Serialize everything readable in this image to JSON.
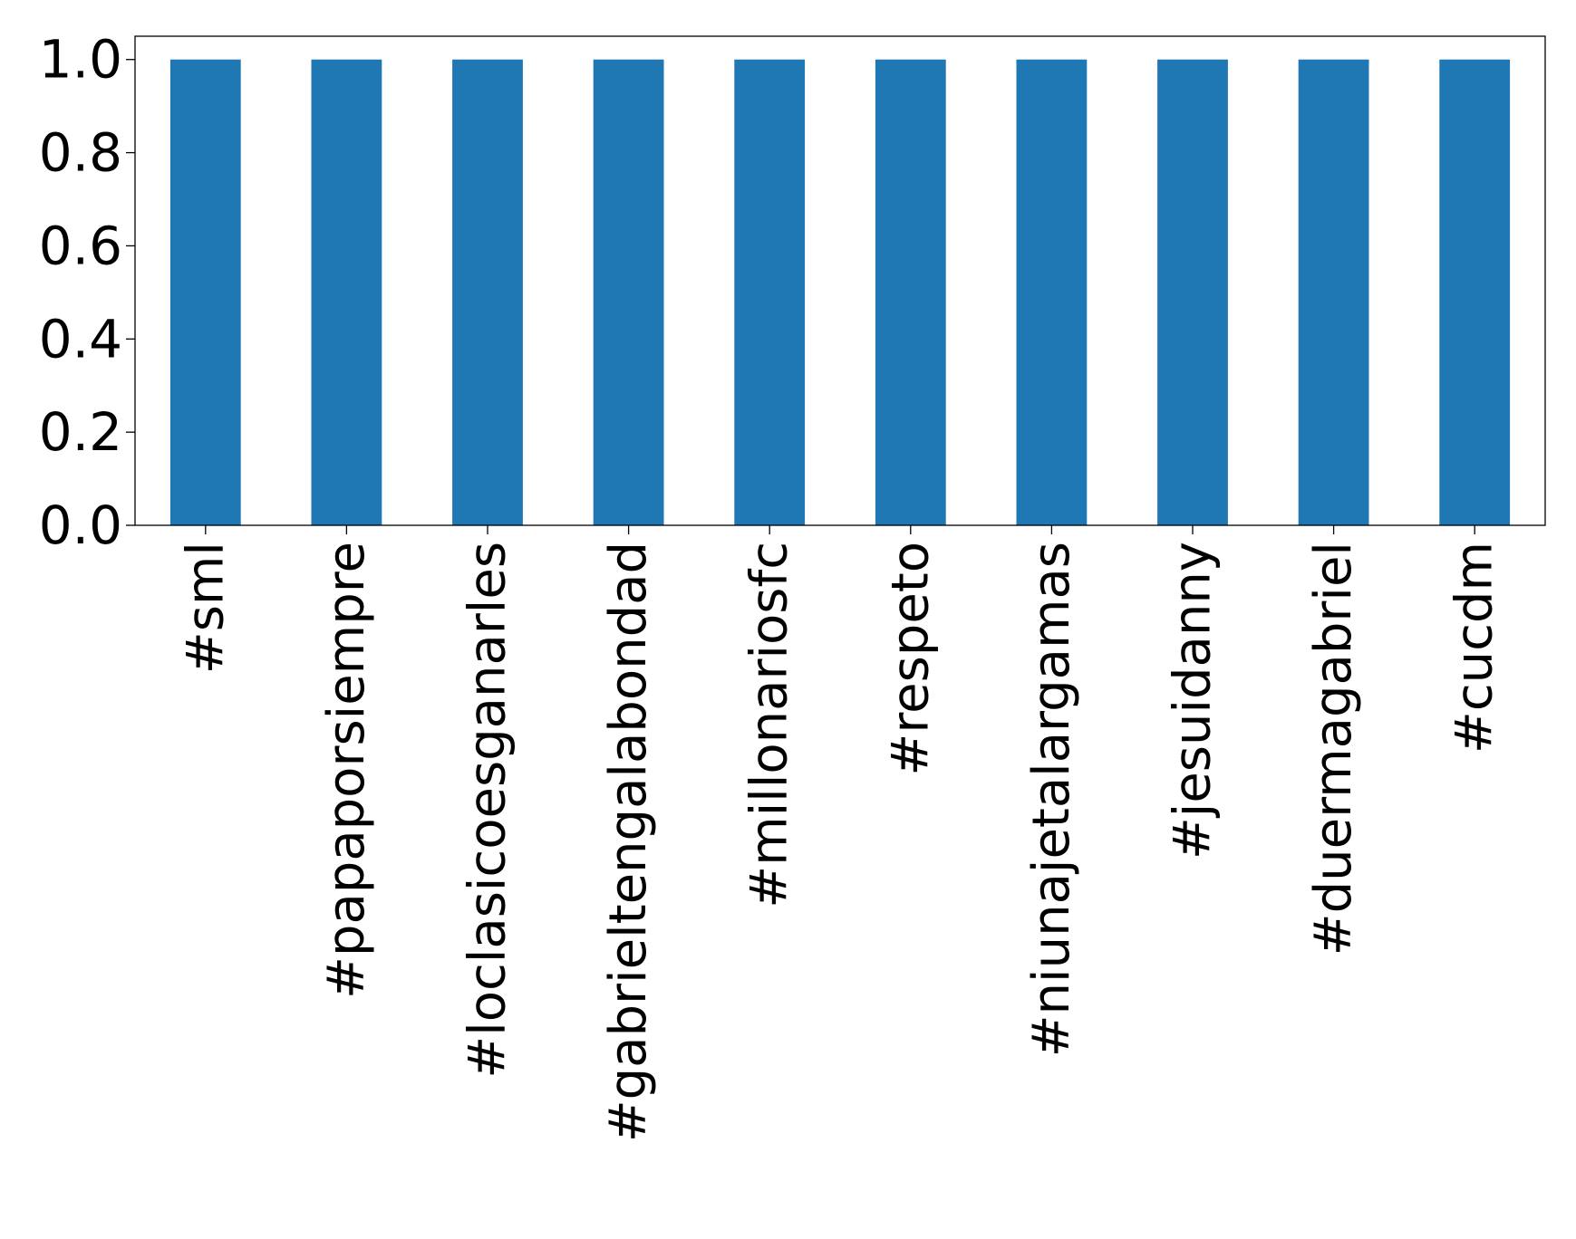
{
  "chart_data": {
    "type": "bar",
    "categories": [
      "#sml",
      "#papaporsiempre",
      "#loclasicoesganarles",
      "#gabrieltengalabondad",
      "#millonariosfc",
      "#respeto",
      "#niunajetalargamas",
      "#jesuidanny",
      "#duermagabriel",
      "#cucdm"
    ],
    "values": [
      1.0,
      1.0,
      1.0,
      1.0,
      1.0,
      1.0,
      1.0,
      1.0,
      1.0,
      1.0
    ],
    "title": "",
    "xlabel": "",
    "ylabel": "",
    "ylim": [
      0,
      1.05
    ],
    "yticks": [
      "0.0",
      "0.2",
      "0.4",
      "0.6",
      "0.8",
      "1.0"
    ],
    "grid": false,
    "legend": "none",
    "bar_color": "#1f77b4"
  }
}
